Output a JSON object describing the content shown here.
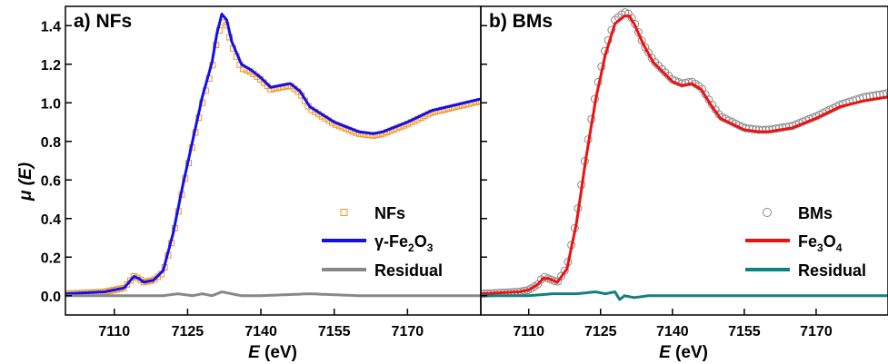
{
  "figure": {
    "ylabel_mu": "μ",
    "ylabel_arg": " (E)",
    "xlabel_e": "E",
    "xlabel_unit": " (eV)"
  },
  "chart_data": [
    {
      "type": "line",
      "panel_title": "a) NFs",
      "xlabel": "E (eV)",
      "ylabel": "μ (E)",
      "xlim": [
        7100,
        7185
      ],
      "ylim": [
        -0.1,
        1.5
      ],
      "xticks": [
        7110,
        7125,
        7140,
        7155,
        7170
      ],
      "yticks": [
        0.0,
        0.2,
        0.4,
        0.6,
        0.8,
        1.0,
        1.2,
        1.4
      ],
      "legend_position": "bottom-right",
      "colors": {
        "data": "#f5931e",
        "fit": "#1010ee",
        "residual": "#888888"
      },
      "series": [
        {
          "name": "NFs",
          "kind": "square-markers",
          "color": "#f5931e",
          "x": [
            7100,
            7108,
            7112,
            7114,
            7115,
            7116,
            7118,
            7120,
            7122,
            7124,
            7126,
            7128,
            7130,
            7131,
            7132,
            7133,
            7134,
            7136,
            7138,
            7140,
            7142,
            7144,
            7146,
            7148,
            7150,
            7155,
            7160,
            7163,
            7165,
            7170,
            7175,
            7180,
            7185
          ],
          "y": [
            0.01,
            0.02,
            0.04,
            0.1,
            0.09,
            0.07,
            0.08,
            0.12,
            0.3,
            0.55,
            0.78,
            1.0,
            1.18,
            1.33,
            1.42,
            1.4,
            1.3,
            1.18,
            1.16,
            1.12,
            1.07,
            1.08,
            1.09,
            1.05,
            0.97,
            0.89,
            0.84,
            0.83,
            0.84,
            0.89,
            0.95,
            0.98,
            1.01
          ]
        },
        {
          "name_prefix": "γ-Fe",
          "name_sub1": "2",
          "name_mid": "O",
          "name_sub2": "3",
          "name": "γ-Fe2O3",
          "kind": "line",
          "color": "#1010ee",
          "x": [
            7100,
            7108,
            7112,
            7114,
            7115,
            7116,
            7118,
            7120,
            7122,
            7124,
            7126,
            7128,
            7130,
            7131,
            7132,
            7133,
            7134,
            7136,
            7138,
            7140,
            7142,
            7144,
            7146,
            7148,
            7150,
            7155,
            7160,
            7163,
            7165,
            7170,
            7175,
            7180,
            7185
          ],
          "y": [
            0.01,
            0.02,
            0.04,
            0.1,
            0.09,
            0.07,
            0.08,
            0.13,
            0.32,
            0.57,
            0.8,
            1.03,
            1.21,
            1.36,
            1.46,
            1.43,
            1.32,
            1.2,
            1.17,
            1.13,
            1.08,
            1.09,
            1.1,
            1.06,
            0.98,
            0.9,
            0.85,
            0.84,
            0.85,
            0.9,
            0.96,
            0.99,
            1.02
          ]
        },
        {
          "name": "Residual",
          "kind": "line",
          "color": "#888888",
          "x": [
            7100,
            7110,
            7115,
            7120,
            7123,
            7126,
            7128,
            7130,
            7132,
            7134,
            7136,
            7140,
            7150,
            7160,
            7170,
            7185
          ],
          "y": [
            0.0,
            0.0,
            0.0,
            0.0,
            0.01,
            0.0,
            0.01,
            0.0,
            0.02,
            0.01,
            0.0,
            0.0,
            0.01,
            0.0,
            0.0,
            0.0
          ]
        }
      ]
    },
    {
      "type": "line",
      "panel_title": "b) BMs",
      "xlabel": "E (eV)",
      "ylabel": "μ (E)",
      "xlim": [
        7100,
        7185
      ],
      "ylim": [
        -0.1,
        1.5
      ],
      "xticks": [
        7110,
        7125,
        7140,
        7155,
        7170
      ],
      "yticks": [
        0.0,
        0.2,
        0.4,
        0.6,
        0.8,
        1.0,
        1.2,
        1.4
      ],
      "legend_position": "bottom-right",
      "colors": {
        "data": "#888888",
        "fit": "#ee1111",
        "residual": "#108080"
      },
      "series": [
        {
          "name": "BMs",
          "kind": "circle-markers",
          "color": "#888888",
          "x": [
            7100,
            7108,
            7110,
            7112,
            7113,
            7114,
            7116,
            7118,
            7120,
            7122,
            7124,
            7126,
            7128,
            7130,
            7131,
            7132,
            7134,
            7136,
            7138,
            7140,
            7142,
            7144,
            7146,
            7148,
            7150,
            7155,
            7158,
            7160,
            7165,
            7170,
            7175,
            7180,
            7185
          ],
          "y": [
            0.01,
            0.02,
            0.03,
            0.06,
            0.1,
            0.09,
            0.07,
            0.15,
            0.4,
            0.75,
            1.05,
            1.28,
            1.43,
            1.47,
            1.46,
            1.42,
            1.3,
            1.22,
            1.17,
            1.12,
            1.1,
            1.11,
            1.08,
            1.0,
            0.93,
            0.87,
            0.86,
            0.86,
            0.88,
            0.93,
            0.99,
            1.03,
            1.05
          ]
        },
        {
          "name_prefix": "Fe",
          "name_sub1": "3",
          "name_mid": "O",
          "name_sub2": "4",
          "name": "Fe3O4",
          "kind": "line",
          "color": "#ee1111",
          "x": [
            7100,
            7108,
            7110,
            7112,
            7113,
            7114,
            7116,
            7118,
            7120,
            7122,
            7124,
            7126,
            7128,
            7130,
            7131,
            7132,
            7134,
            7136,
            7138,
            7140,
            7142,
            7144,
            7146,
            7148,
            7150,
            7155,
            7158,
            7160,
            7165,
            7170,
            7175,
            7180,
            7185
          ],
          "y": [
            0.01,
            0.02,
            0.03,
            0.06,
            0.09,
            0.09,
            0.07,
            0.14,
            0.38,
            0.72,
            1.02,
            1.25,
            1.41,
            1.45,
            1.45,
            1.41,
            1.3,
            1.21,
            1.16,
            1.11,
            1.09,
            1.1,
            1.07,
            0.99,
            0.92,
            0.86,
            0.85,
            0.85,
            0.87,
            0.92,
            0.98,
            1.01,
            1.03
          ]
        },
        {
          "name": "Residual",
          "kind": "line",
          "color": "#108080",
          "x": [
            7100,
            7110,
            7115,
            7120,
            7124,
            7126,
            7128,
            7129,
            7130,
            7132,
            7135,
            7140,
            7150,
            7160,
            7170,
            7185
          ],
          "y": [
            0.0,
            0.0,
            0.01,
            0.01,
            0.02,
            0.01,
            0.02,
            -0.02,
            0.0,
            -0.01,
            0.0,
            0.0,
            0.0,
            0.0,
            0.0,
            0.0
          ]
        }
      ]
    }
  ]
}
